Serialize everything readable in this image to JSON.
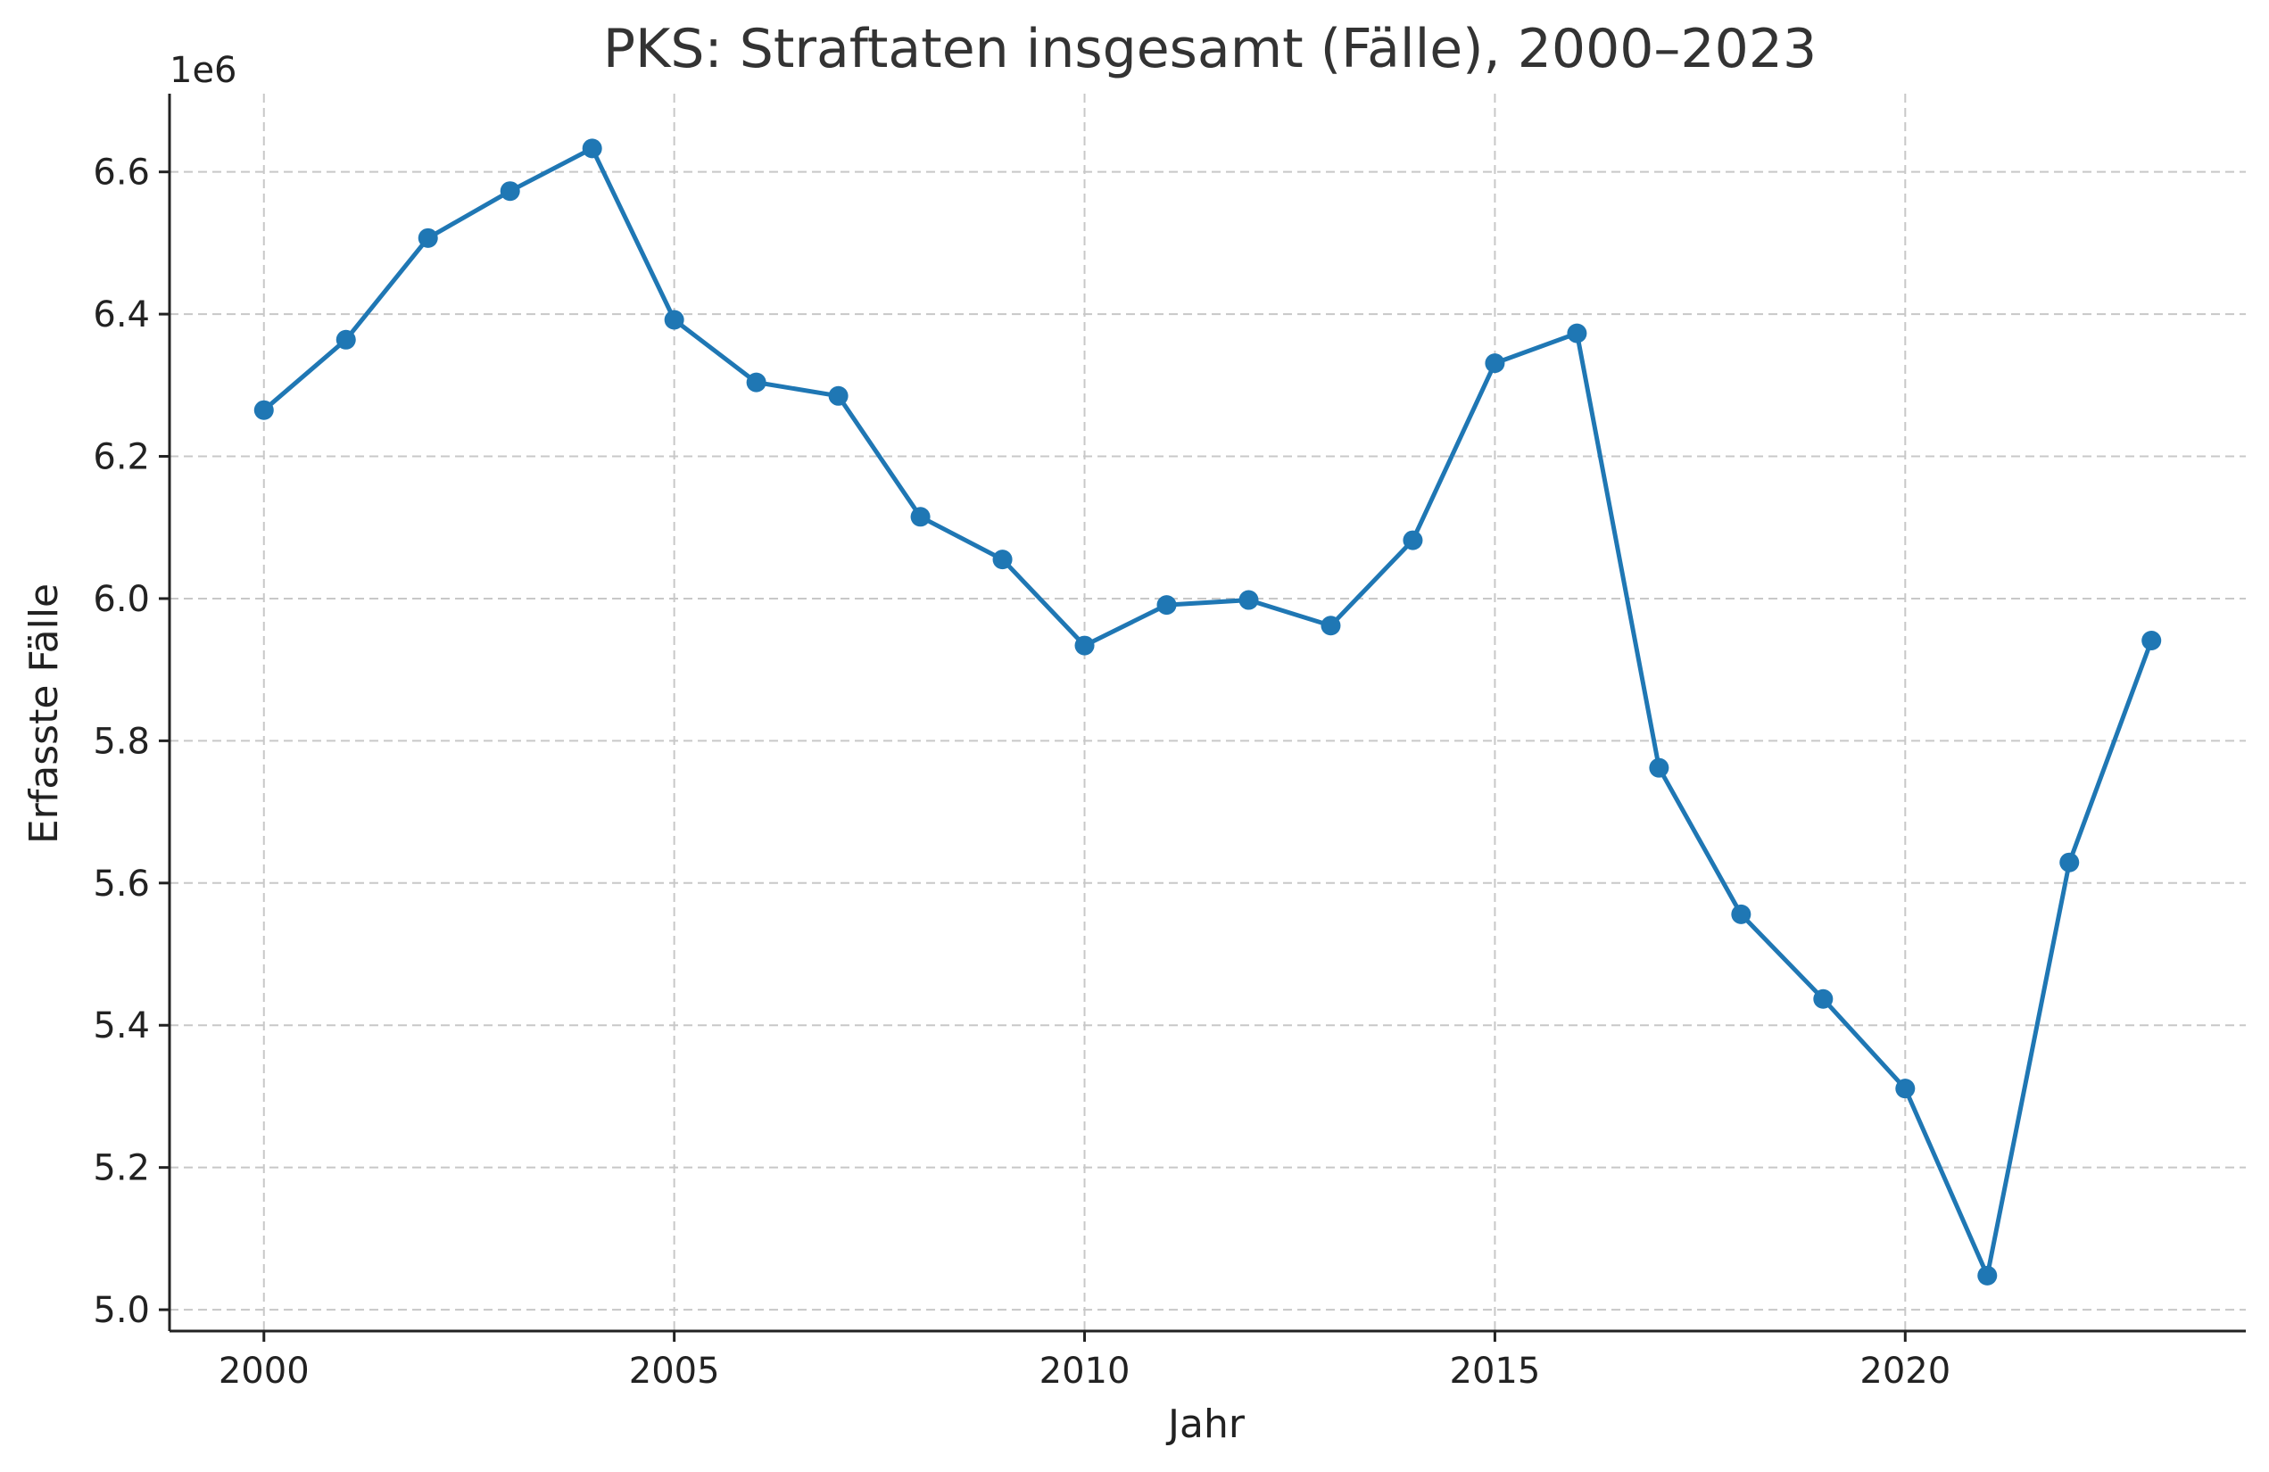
{
  "chart_data": {
    "type": "line",
    "title": "PKS: Straftaten insgesamt (Fälle), 2000–2023",
    "xlabel": "Jahr",
    "ylabel": "Erfasste Fälle",
    "y_offset_label": "1e6",
    "xlim": [
      1998.85,
      2024.15
    ],
    "ylim": [
      4.97,
      6.71
    ],
    "x_ticks": [
      2000,
      2005,
      2010,
      2015,
      2020
    ],
    "x_tick_labels": [
      "2000",
      "2005",
      "2010",
      "2015",
      "2020"
    ],
    "y_ticks": [
      5.0,
      5.2,
      5.4,
      5.6,
      5.8,
      6.0,
      6.2,
      6.4,
      6.6
    ],
    "y_tick_labels": [
      "5.0",
      "5.2",
      "5.4",
      "5.6",
      "5.8",
      "6.0",
      "6.2",
      "6.4",
      "6.6"
    ],
    "grid": true,
    "color": "#1f77b4",
    "series": [
      {
        "x": [
          2000,
          2001,
          2002,
          2003,
          2004,
          2005,
          2006,
          2007,
          2008,
          2009,
          2010,
          2011,
          2012,
          2013,
          2014,
          2015,
          2016,
          2017,
          2018,
          2019,
          2020,
          2021,
          2022,
          2023
        ],
        "y": [
          6.265,
          6.364,
          6.507,
          6.573,
          6.633,
          6.392,
          6.304,
          6.285,
          6.115,
          6.055,
          5.934,
          5.991,
          5.998,
          5.962,
          6.082,
          6.331,
          6.373,
          5.762,
          5.556,
          5.437,
          5.311,
          5.048,
          5.629,
          5.941
        ]
      }
    ]
  }
}
